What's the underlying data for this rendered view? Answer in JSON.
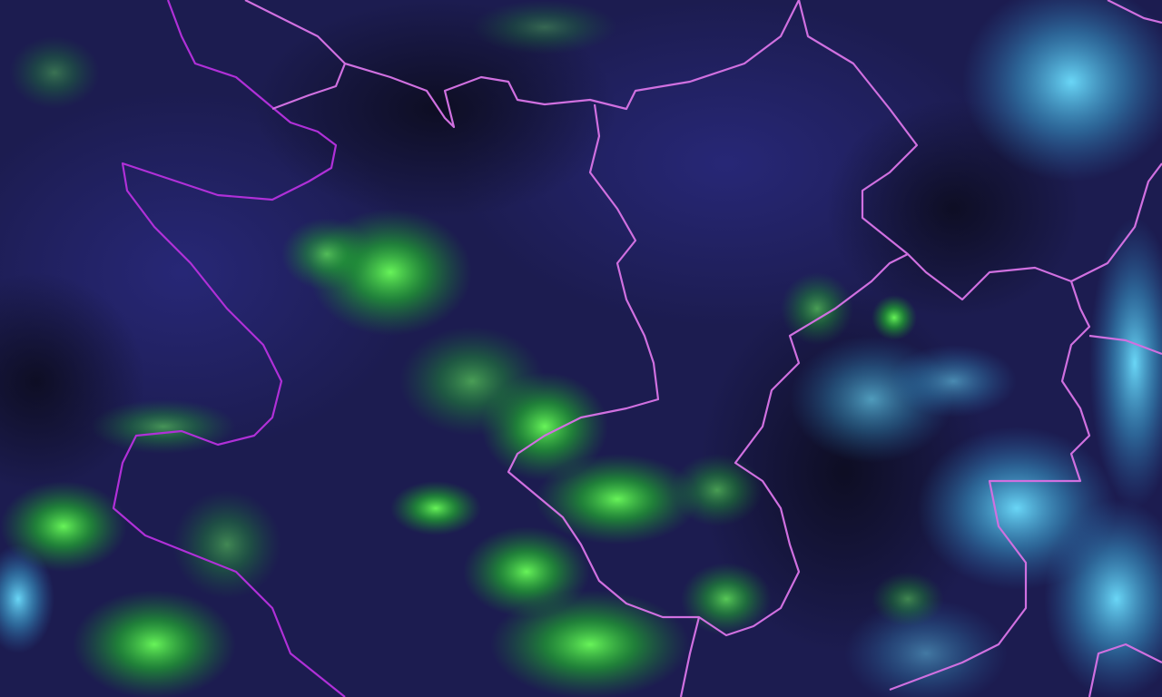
{
  "map": {
    "type": "satellite-composite-imagery",
    "colors": {
      "background": "#1a1a4a",
      "vegetation": "#2ee82e",
      "cloud": "#40c8e8",
      "border_primary": "#b030d8",
      "border_secondary": "#d070e0"
    }
  }
}
